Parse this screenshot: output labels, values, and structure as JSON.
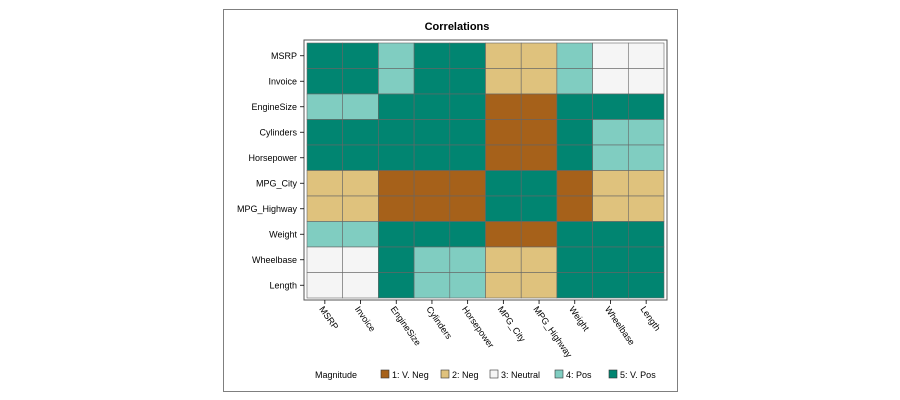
{
  "chart_data": {
    "type": "heatmap",
    "title": "Correlations",
    "xlabel": "",
    "ylabel": "",
    "variables": [
      "MSRP",
      "Invoice",
      "EngineSize",
      "Cylinders",
      "Horsepower",
      "MPG_City",
      "MPG_Highway",
      "Weight",
      "Wheelbase",
      "Length"
    ],
    "matrix": [
      [
        5,
        5,
        4,
        5,
        5,
        2,
        2,
        4,
        3,
        3
      ],
      [
        5,
        5,
        4,
        5,
        5,
        2,
        2,
        4,
        3,
        3
      ],
      [
        4,
        4,
        5,
        5,
        5,
        1,
        1,
        5,
        5,
        5
      ],
      [
        5,
        5,
        5,
        5,
        5,
        1,
        1,
        5,
        4,
        4
      ],
      [
        5,
        5,
        5,
        5,
        5,
        1,
        1,
        5,
        4,
        4
      ],
      [
        2,
        2,
        1,
        1,
        1,
        5,
        5,
        1,
        2,
        2
      ],
      [
        2,
        2,
        1,
        1,
        1,
        5,
        5,
        1,
        2,
        2
      ],
      [
        4,
        4,
        5,
        5,
        5,
        1,
        1,
        5,
        5,
        5
      ],
      [
        3,
        3,
        5,
        4,
        4,
        2,
        2,
        5,
        5,
        5
      ],
      [
        3,
        3,
        5,
        4,
        4,
        2,
        2,
        5,
        5,
        5
      ]
    ],
    "legend": {
      "title": "Magnitude",
      "placement": "bottom",
      "entries": [
        {
          "value": 1,
          "label": "1: V. Neg",
          "color": "#a6611a"
        },
        {
          "value": 2,
          "label": "2: Neg",
          "color": "#dfc27d"
        },
        {
          "value": 3,
          "label": "3: Neutral",
          "color": "#f5f5f5"
        },
        {
          "value": 4,
          "label": "4: Pos",
          "color": "#80cdc1"
        },
        {
          "value": 5,
          "label": "5: V. Pos",
          "color": "#018571"
        }
      ]
    }
  }
}
